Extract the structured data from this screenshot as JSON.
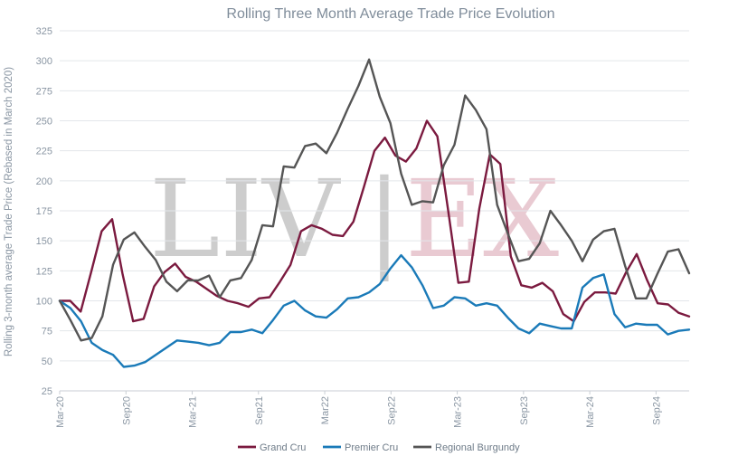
{
  "chart_data": {
    "type": "line",
    "title": "Rolling Three Month Average Trade Price Evolution",
    "ylabel": "Rolling 3-month average Trade Price (Rebased in March 2020)",
    "xlabel": "",
    "ylim": [
      25,
      325
    ],
    "yticks": [
      25,
      50,
      75,
      100,
      125,
      150,
      175,
      200,
      225,
      250,
      275,
      300,
      325
    ],
    "xlim": [
      0,
      57
    ],
    "xticks": [
      {
        "label": "Mar-20",
        "x": 0
      },
      {
        "label": "Sep20",
        "x": 6
      },
      {
        "label": "Mar-21",
        "x": 12
      },
      {
        "label": "Sep21",
        "x": 18
      },
      {
        "label": "Mar22",
        "x": 24
      },
      {
        "label": "Sep22",
        "x": 30
      },
      {
        "label": "Mar-23",
        "x": 36
      },
      {
        "label": "Sep23",
        "x": 42
      },
      {
        "label": "Mar-24",
        "x": 48
      },
      {
        "label": "Sep24",
        "x": 54
      }
    ],
    "grid": true,
    "legend_position": "bottom",
    "watermark": {
      "left": "LIV",
      "sep": "|",
      "right": "EX"
    },
    "series": [
      {
        "name": "Grand Cru",
        "color": "#7b1a3f",
        "values": [
          100,
          100,
          91,
          124,
          158,
          168,
          122,
          83,
          85,
          112,
          124,
          131,
          120,
          116,
          110,
          104,
          100,
          98,
          95,
          102,
          103,
          116,
          130,
          158,
          163,
          160,
          155,
          154,
          166,
          195,
          225,
          236,
          221,
          216,
          227,
          250,
          237,
          177,
          115,
          116,
          177,
          222,
          214,
          137,
          113,
          111,
          115,
          108,
          89,
          83,
          99,
          107,
          107,
          106,
          124,
          139,
          117,
          98,
          97,
          90,
          87
        ]
      },
      {
        "name": "Premier Cru",
        "color": "#1a7ab8",
        "values": [
          100,
          94,
          83,
          65,
          59,
          55,
          45,
          46,
          49,
          55,
          61,
          67,
          66,
          65,
          63,
          65,
          74,
          74,
          76,
          73,
          84,
          96,
          100,
          92,
          87,
          86,
          93,
          102,
          103,
          107,
          114,
          127,
          138,
          128,
          113,
          94,
          96,
          103,
          102,
          96,
          98,
          96,
          86,
          77,
          73,
          81,
          79,
          77,
          77,
          111,
          119,
          122,
          89,
          78,
          81,
          80,
          80,
          72,
          75,
          76
        ]
      },
      {
        "name": "Regional Burgundy",
        "color": "#555555",
        "values": [
          100,
          84,
          67,
          69,
          87,
          130,
          151,
          157,
          145,
          134,
          116,
          108,
          117,
          117,
          121,
          103,
          117,
          119,
          134,
          163,
          162,
          212,
          211,
          229,
          231,
          223,
          240,
          260,
          279,
          301,
          270,
          248,
          206,
          180,
          183,
          182,
          213,
          230,
          271,
          259,
          243,
          180,
          156,
          133,
          135,
          148,
          175,
          163,
          150,
          133,
          151,
          158,
          160,
          129,
          102,
          102,
          122,
          141,
          143,
          123
        ]
      }
    ]
  }
}
